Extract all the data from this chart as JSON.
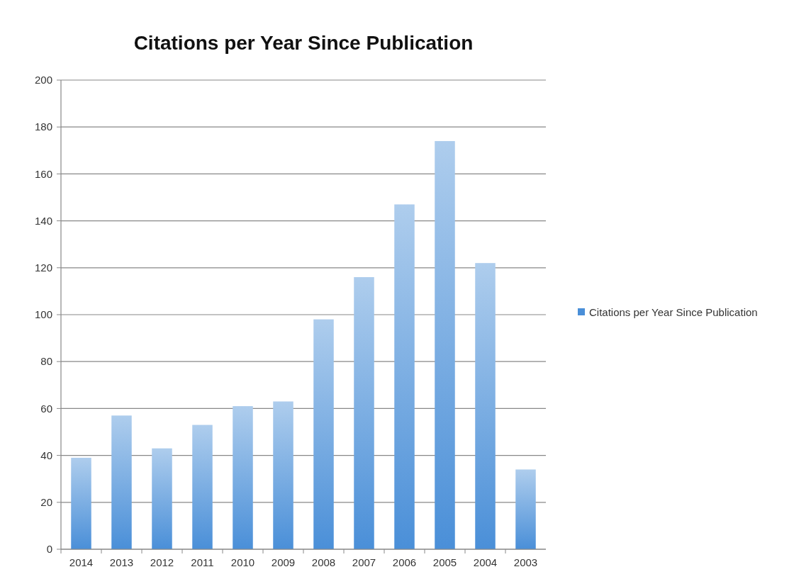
{
  "chart_data": {
    "type": "bar",
    "title": "Citations per Year  Since Publication",
    "categories": [
      "2014",
      "2013",
      "2012",
      "2011",
      "2010",
      "2009",
      "2008",
      "2007",
      "2006",
      "2005",
      "2004",
      "2003"
    ],
    "series": [
      {
        "name": "Citations per Year  Since Publication",
        "color": "#4a8fd8",
        "values": [
          39,
          57,
          43,
          53,
          61,
          63,
          98,
          116,
          147,
          174,
          122,
          34
        ]
      }
    ],
    "ylim": [
      0,
      200
    ],
    "yticks": [
      0,
      20,
      40,
      60,
      80,
      100,
      120,
      140,
      160,
      180,
      200
    ],
    "grid": "y",
    "legend": "right"
  }
}
